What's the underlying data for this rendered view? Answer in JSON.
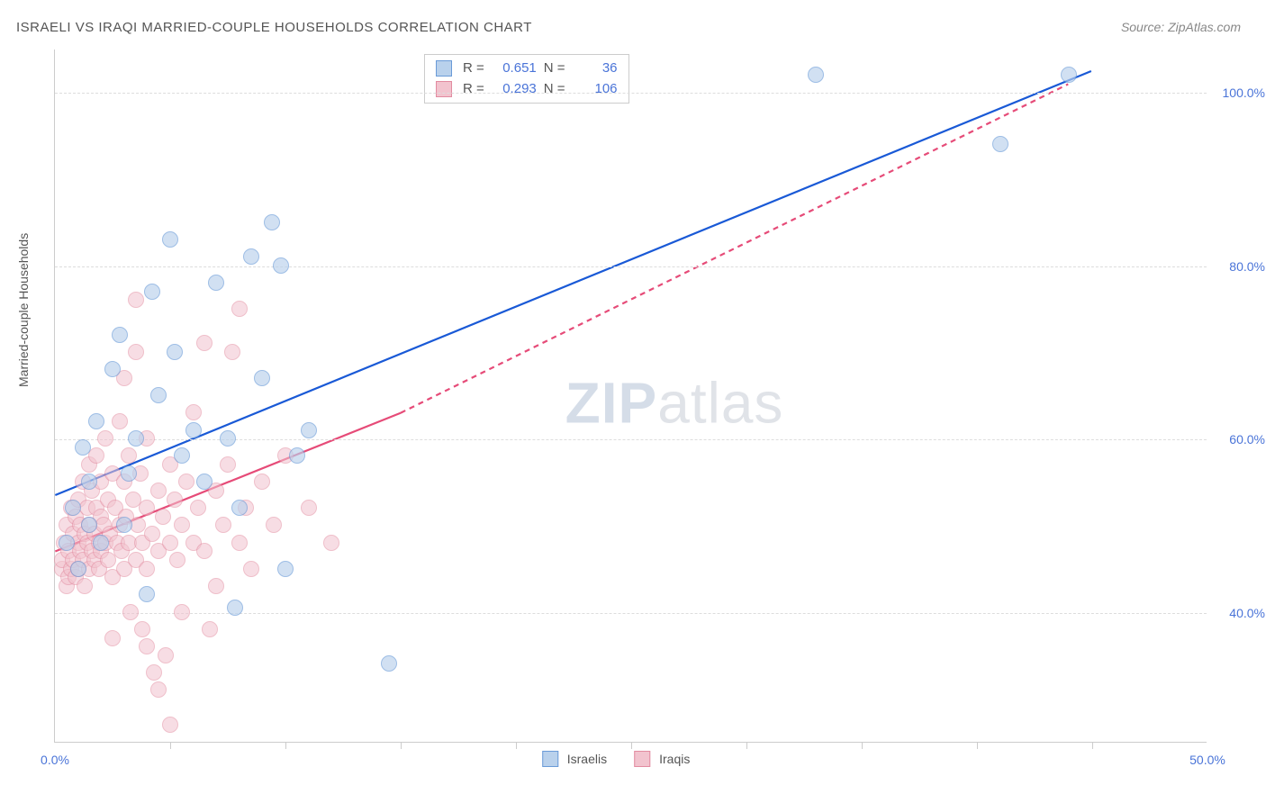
{
  "title": "ISRAELI VS IRAQI MARRIED-COUPLE HOUSEHOLDS CORRELATION CHART",
  "source": "Source: ZipAtlas.com",
  "y_axis_label": "Married-couple Households",
  "watermark": {
    "bold": "ZIP",
    "rest": "atlas"
  },
  "axes": {
    "x_min": 0.0,
    "x_max": 50.0,
    "y_min": 25.0,
    "y_max": 105.0,
    "x_ticks": [
      0.0,
      50.0
    ],
    "x_tick_minors": [
      5,
      10,
      15,
      20,
      25,
      30,
      35,
      40,
      45
    ],
    "y_ticks": [
      40.0,
      60.0,
      80.0,
      100.0
    ],
    "x_tick_format": "pct1",
    "y_tick_format": "pct1"
  },
  "grid_color": "#dddddd",
  "background_color": "#ffffff",
  "series": {
    "israelis": {
      "label": "Israelis",
      "fill": "#b9d1ec",
      "stroke": "#6a9bd8",
      "trend_color": "#1959d6",
      "opacity": 0.65,
      "marker_radius": 9,
      "R": "0.651",
      "N": "36",
      "trend": {
        "x1": 0,
        "y1": 53.5,
        "x2": 45,
        "y2": 102.5
      },
      "points": [
        [
          0.5,
          48
        ],
        [
          0.8,
          52
        ],
        [
          1.0,
          45
        ],
        [
          1.2,
          59
        ],
        [
          1.5,
          50
        ],
        [
          1.5,
          55
        ],
        [
          1.8,
          62
        ],
        [
          2.0,
          48
        ],
        [
          2.5,
          68
        ],
        [
          2.8,
          72
        ],
        [
          3.0,
          50
        ],
        [
          3.2,
          56
        ],
        [
          3.5,
          60
        ],
        [
          4.0,
          42
        ],
        [
          4.2,
          77
        ],
        [
          4.5,
          65
        ],
        [
          5.0,
          83
        ],
        [
          5.2,
          70
        ],
        [
          5.5,
          58
        ],
        [
          6.0,
          61
        ],
        [
          6.5,
          55
        ],
        [
          7.0,
          78
        ],
        [
          7.5,
          60
        ],
        [
          7.8,
          40.5
        ],
        [
          8.0,
          52
        ],
        [
          8.5,
          81
        ],
        [
          9.0,
          67
        ],
        [
          9.4,
          85
        ],
        [
          9.8,
          80
        ],
        [
          10.0,
          45
        ],
        [
          10.5,
          58
        ],
        [
          11,
          61
        ],
        [
          14.5,
          34
        ],
        [
          33,
          102
        ],
        [
          41,
          94
        ],
        [
          44,
          102
        ]
      ]
    },
    "iraqis": {
      "label": "Iraqis",
      "fill": "#f2c3ce",
      "stroke": "#e28ba0",
      "trend_color": "#e64b78",
      "opacity": 0.55,
      "marker_radius": 9,
      "R": "0.293",
      "N": "106",
      "trend_solid": {
        "x1": 0,
        "y1": 47,
        "x2": 15,
        "y2": 63
      },
      "trend_dashed": {
        "x1": 15,
        "y1": 63,
        "x2": 44,
        "y2": 101
      },
      "points": [
        [
          0.3,
          45
        ],
        [
          0.3,
          46
        ],
        [
          0.4,
          48
        ],
        [
          0.5,
          43
        ],
        [
          0.5,
          50
        ],
        [
          0.6,
          44
        ],
        [
          0.6,
          47
        ],
        [
          0.7,
          52
        ],
        [
          0.7,
          45
        ],
        [
          0.8,
          49
        ],
        [
          0.8,
          46
        ],
        [
          0.9,
          51
        ],
        [
          0.9,
          44
        ],
        [
          1.0,
          48
        ],
        [
          1.0,
          53
        ],
        [
          1.0,
          45
        ],
        [
          1.1,
          50
        ],
        [
          1.1,
          47
        ],
        [
          1.2,
          46
        ],
        [
          1.2,
          55
        ],
        [
          1.3,
          49
        ],
        [
          1.3,
          43
        ],
        [
          1.4,
          52
        ],
        [
          1.4,
          48
        ],
        [
          1.5,
          57
        ],
        [
          1.5,
          45
        ],
        [
          1.5,
          50
        ],
        [
          1.6,
          47
        ],
        [
          1.6,
          54
        ],
        [
          1.7,
          49
        ],
        [
          1.7,
          46
        ],
        [
          1.8,
          52
        ],
        [
          1.8,
          58
        ],
        [
          1.9,
          48
        ],
        [
          1.9,
          45
        ],
        [
          2.0,
          51
        ],
        [
          2.0,
          55
        ],
        [
          2.0,
          47
        ],
        [
          2.1,
          50
        ],
        [
          2.2,
          60
        ],
        [
          2.2,
          48
        ],
        [
          2.3,
          53
        ],
        [
          2.3,
          46
        ],
        [
          2.4,
          49
        ],
        [
          2.5,
          56
        ],
        [
          2.5,
          44
        ],
        [
          2.5,
          37
        ],
        [
          2.6,
          52
        ],
        [
          2.7,
          48
        ],
        [
          2.8,
          62
        ],
        [
          2.8,
          50
        ],
        [
          2.9,
          47
        ],
        [
          3.0,
          55
        ],
        [
          3.0,
          45
        ],
        [
          3.0,
          67
        ],
        [
          3.1,
          51
        ],
        [
          3.2,
          58
        ],
        [
          3.2,
          48
        ],
        [
          3.3,
          40
        ],
        [
          3.4,
          53
        ],
        [
          3.5,
          46
        ],
        [
          3.5,
          70
        ],
        [
          3.5,
          76
        ],
        [
          3.6,
          50
        ],
        [
          3.7,
          56
        ],
        [
          3.8,
          48
        ],
        [
          3.8,
          38
        ],
        [
          4.0,
          52
        ],
        [
          4.0,
          60
        ],
        [
          4.0,
          45
        ],
        [
          4.0,
          36
        ],
        [
          4.2,
          49
        ],
        [
          4.3,
          33
        ],
        [
          4.5,
          54
        ],
        [
          4.5,
          47
        ],
        [
          4.5,
          31
        ],
        [
          4.7,
          51
        ],
        [
          4.8,
          35
        ],
        [
          5.0,
          57
        ],
        [
          5.0,
          48
        ],
        [
          5.0,
          27
        ],
        [
          5.2,
          53
        ],
        [
          5.3,
          46
        ],
        [
          5.5,
          50
        ],
        [
          5.5,
          40
        ],
        [
          5.7,
          55
        ],
        [
          6.0,
          48
        ],
        [
          6.0,
          63
        ],
        [
          6.2,
          52
        ],
        [
          6.5,
          47
        ],
        [
          6.5,
          71
        ],
        [
          6.7,
          38
        ],
        [
          7.0,
          54
        ],
        [
          7.0,
          43
        ],
        [
          7.3,
          50
        ],
        [
          7.5,
          57
        ],
        [
          7.7,
          70
        ],
        [
          8.0,
          48
        ],
        [
          8.0,
          75
        ],
        [
          8.3,
          52
        ],
        [
          8.5,
          45
        ],
        [
          9.0,
          55
        ],
        [
          9.5,
          50
        ],
        [
          10.0,
          58
        ],
        [
          11.0,
          52
        ],
        [
          12.0,
          48
        ]
      ]
    }
  }
}
